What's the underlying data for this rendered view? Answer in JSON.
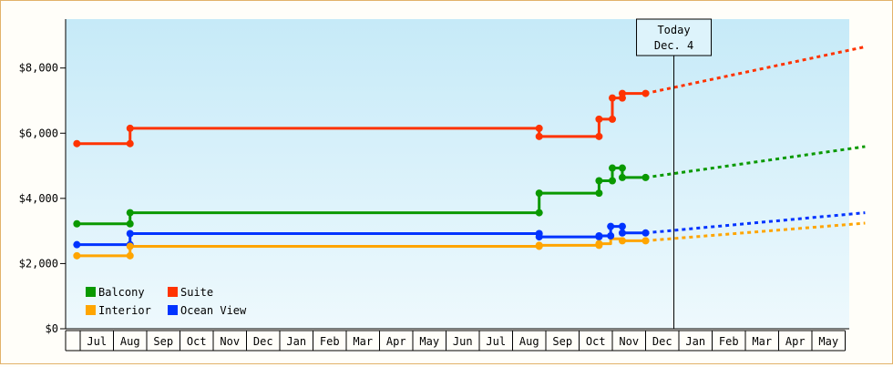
{
  "chart_data": {
    "type": "line",
    "title": "",
    "xlabel": "",
    "ylabel": "",
    "ylim": [
      0,
      9500
    ],
    "grid": false,
    "legend_position": "bottom-left",
    "y_ticks": [
      {
        "value": 0,
        "label": "$0"
      },
      {
        "value": 2000,
        "label": "$2,000"
      },
      {
        "value": 4000,
        "label": "$4,000"
      },
      {
        "value": 6000,
        "label": "$6,000"
      },
      {
        "value": 8000,
        "label": "$8,000"
      }
    ],
    "x_months": [
      "Jul",
      "Aug",
      "Sep",
      "Oct",
      "Nov",
      "Dec",
      "Jan",
      "Feb",
      "Mar",
      "Apr",
      "May",
      "Jun",
      "Jul",
      "Aug",
      "Sep",
      "Oct",
      "Nov",
      "Dec",
      "Jan",
      "Feb",
      "Mar",
      "Apr",
      "May"
    ],
    "today_marker": {
      "line1": "Today",
      "line2": "Dec. 4",
      "month_position": 17.85
    },
    "legend": [
      {
        "label": "Balcony",
        "color": "#0a9900"
      },
      {
        "label": "Suite",
        "color": "#ff3300"
      },
      {
        "label": "Interior",
        "color": "#ffa500"
      },
      {
        "label": "Ocean View",
        "color": "#0033ff"
      }
    ],
    "series": [
      {
        "name": "Suite",
        "color": "#ff3300",
        "steps": [
          [
            -0.1,
            5680
          ],
          [
            1.5,
            5680
          ],
          [
            1.5,
            6150
          ],
          [
            13.8,
            6150
          ],
          [
            13.8,
            5900
          ],
          [
            15.6,
            5900
          ],
          [
            15.6,
            6430
          ],
          [
            16.0,
            6430
          ],
          [
            16.0,
            7080
          ],
          [
            16.3,
            7080
          ],
          [
            16.3,
            7220
          ],
          [
            17.0,
            7220
          ]
        ],
        "markers": [
          [
            -0.1,
            5680
          ],
          [
            1.5,
            5680
          ],
          [
            1.5,
            6150
          ],
          [
            13.8,
            6150
          ],
          [
            13.8,
            5900
          ],
          [
            15.6,
            5900
          ],
          [
            15.6,
            6430
          ],
          [
            16.0,
            6430
          ],
          [
            16.0,
            7080
          ],
          [
            16.3,
            7080
          ],
          [
            16.3,
            7220
          ],
          [
            17.0,
            7220
          ]
        ],
        "forecast": [
          [
            17.0,
            7220
          ],
          [
            23.6,
            8650
          ]
        ]
      },
      {
        "name": "Balcony",
        "color": "#0a9900",
        "steps": [
          [
            -0.1,
            3220
          ],
          [
            1.5,
            3220
          ],
          [
            1.5,
            3560
          ],
          [
            13.8,
            3560
          ],
          [
            13.8,
            4160
          ],
          [
            15.6,
            4160
          ],
          [
            15.6,
            4540
          ],
          [
            16.0,
            4540
          ],
          [
            16.0,
            4930
          ],
          [
            16.3,
            4930
          ],
          [
            16.3,
            4640
          ],
          [
            17.0,
            4640
          ]
        ],
        "markers": [
          [
            -0.1,
            3220
          ],
          [
            1.5,
            3220
          ],
          [
            1.5,
            3560
          ],
          [
            13.8,
            3560
          ],
          [
            13.8,
            4160
          ],
          [
            15.6,
            4160
          ],
          [
            15.6,
            4540
          ],
          [
            16.0,
            4540
          ],
          [
            16.0,
            4930
          ],
          [
            16.3,
            4930
          ],
          [
            16.3,
            4640
          ],
          [
            17.0,
            4640
          ]
        ],
        "forecast": [
          [
            17.0,
            4640
          ],
          [
            23.6,
            5590
          ]
        ]
      },
      {
        "name": "Ocean View",
        "color": "#0033ff",
        "steps": [
          [
            -0.1,
            2580
          ],
          [
            1.5,
            2580
          ],
          [
            1.5,
            2920
          ],
          [
            13.8,
            2920
          ],
          [
            13.8,
            2820
          ],
          [
            15.6,
            2820
          ],
          [
            15.6,
            2850
          ],
          [
            15.95,
            2850
          ],
          [
            15.95,
            3140
          ],
          [
            16.3,
            3140
          ],
          [
            16.3,
            2940
          ],
          [
            17.0,
            2940
          ]
        ],
        "markers": [
          [
            -0.1,
            2580
          ],
          [
            1.5,
            2580
          ],
          [
            1.5,
            2920
          ],
          [
            13.8,
            2920
          ],
          [
            13.8,
            2820
          ],
          [
            15.6,
            2820
          ],
          [
            15.6,
            2850
          ],
          [
            15.95,
            2850
          ],
          [
            15.95,
            3140
          ],
          [
            16.3,
            3140
          ],
          [
            16.3,
            2940
          ],
          [
            17.0,
            2940
          ]
        ],
        "forecast": [
          [
            17.0,
            2940
          ],
          [
            23.6,
            3560
          ]
        ]
      },
      {
        "name": "Interior",
        "color": "#ffa500",
        "steps": [
          [
            -0.1,
            2240
          ],
          [
            1.5,
            2240
          ],
          [
            1.5,
            2530
          ],
          [
            13.8,
            2530
          ],
          [
            13.8,
            2560
          ],
          [
            15.6,
            2560
          ],
          [
            15.6,
            2610
          ],
          [
            15.95,
            2610
          ],
          [
            15.95,
            2760
          ],
          [
            16.3,
            2760
          ],
          [
            16.3,
            2700
          ],
          [
            17.0,
            2700
          ]
        ],
        "markers": [
          [
            -0.1,
            2240
          ],
          [
            1.5,
            2240
          ],
          [
            1.5,
            2530
          ],
          [
            13.8,
            2530
          ],
          [
            13.8,
            2560
          ],
          [
            15.6,
            2560
          ],
          [
            15.6,
            2610
          ],
          [
            16.3,
            2700
          ],
          [
            17.0,
            2700
          ]
        ],
        "forecast": [
          [
            17.0,
            2700
          ],
          [
            23.6,
            3240
          ]
        ]
      }
    ]
  }
}
